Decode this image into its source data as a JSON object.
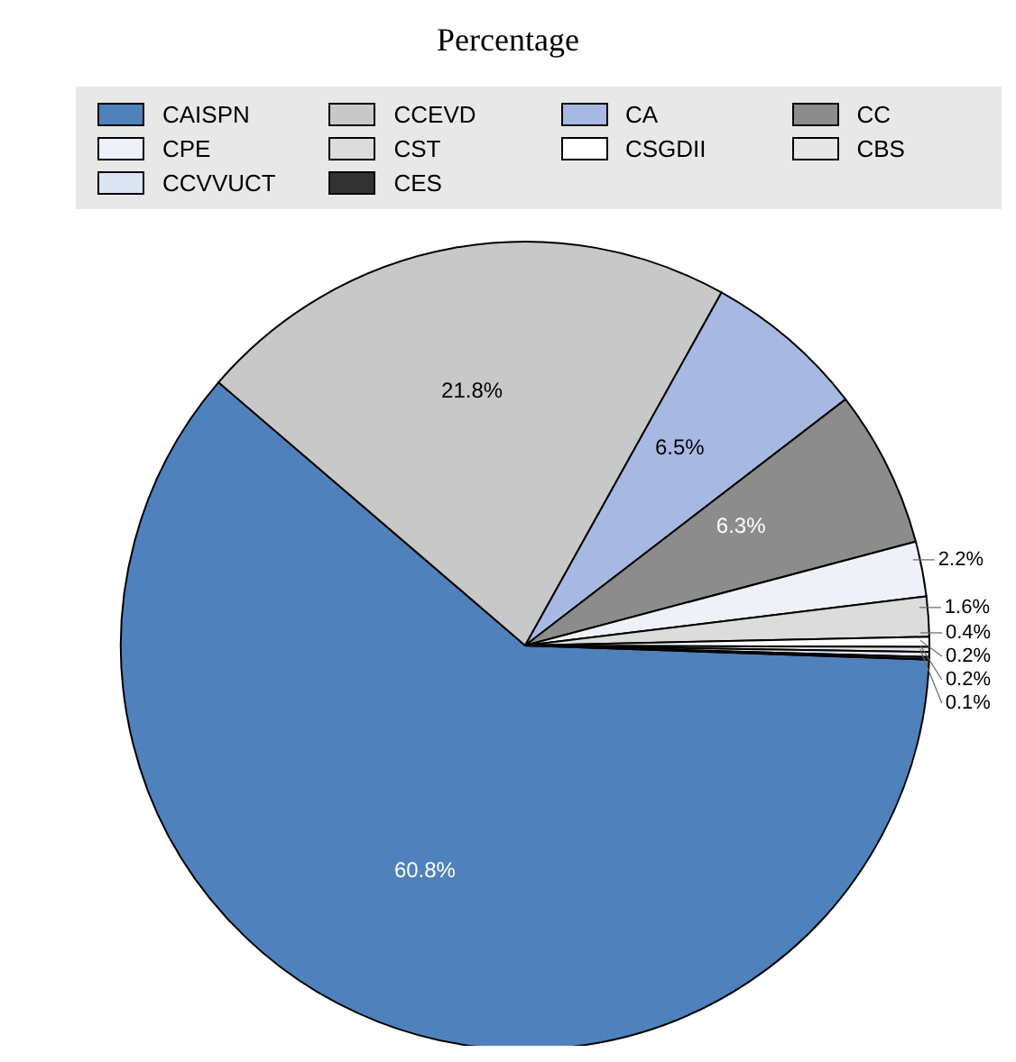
{
  "chart_data": {
    "type": "pie",
    "title": "Percentage",
    "categories": [
      "CAISPN",
      "CCEVD",
      "CA",
      "CC",
      "CPE",
      "CST",
      "CSGDII",
      "CBS",
      "CCVVUCT",
      "CES"
    ],
    "values": [
      60.8,
      21.8,
      6.5,
      6.3,
      2.2,
      1.6,
      0.4,
      0.2,
      0.2,
      0.1
    ],
    "value_labels": [
      "60.8%",
      "21.8%",
      "6.5%",
      "6.3%",
      "2.2%",
      "1.6%",
      "0.4%",
      "0.2%",
      "0.2%",
      "0.1%"
    ],
    "colors": [
      "#4f81bd",
      "#c8c8c8",
      "#a7b9e3",
      "#8c8c8c",
      "#eef1f8",
      "#dcdcdc",
      "#ffffff",
      "#e6e6e6",
      "#dbe5f4",
      "#333333"
    ],
    "legend": "top"
  }
}
